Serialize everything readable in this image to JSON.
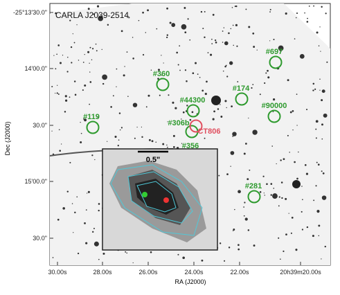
{
  "title": "CARLA J2039-2514",
  "x_axis": {
    "label": "RA (J2000)",
    "ticks": [
      "30.00s",
      "28.00s",
      "26.00s",
      "24.00s",
      "22.00s",
      "20h39m20.00s"
    ]
  },
  "y_axis": {
    "label": "Dec (J2000)",
    "ticks": [
      "-25°13'30.0\"",
      "14'00.0\"",
      "30.0\"",
      "15'00.0\"",
      "30.0\""
    ]
  },
  "sources": [
    "#697",
    "#360",
    "#174",
    "#44300",
    "#90000",
    "#119",
    "#306b",
    "#356",
    "#281"
  ],
  "target": "CT806",
  "inset": {
    "scale_label": "0.5\""
  }
}
